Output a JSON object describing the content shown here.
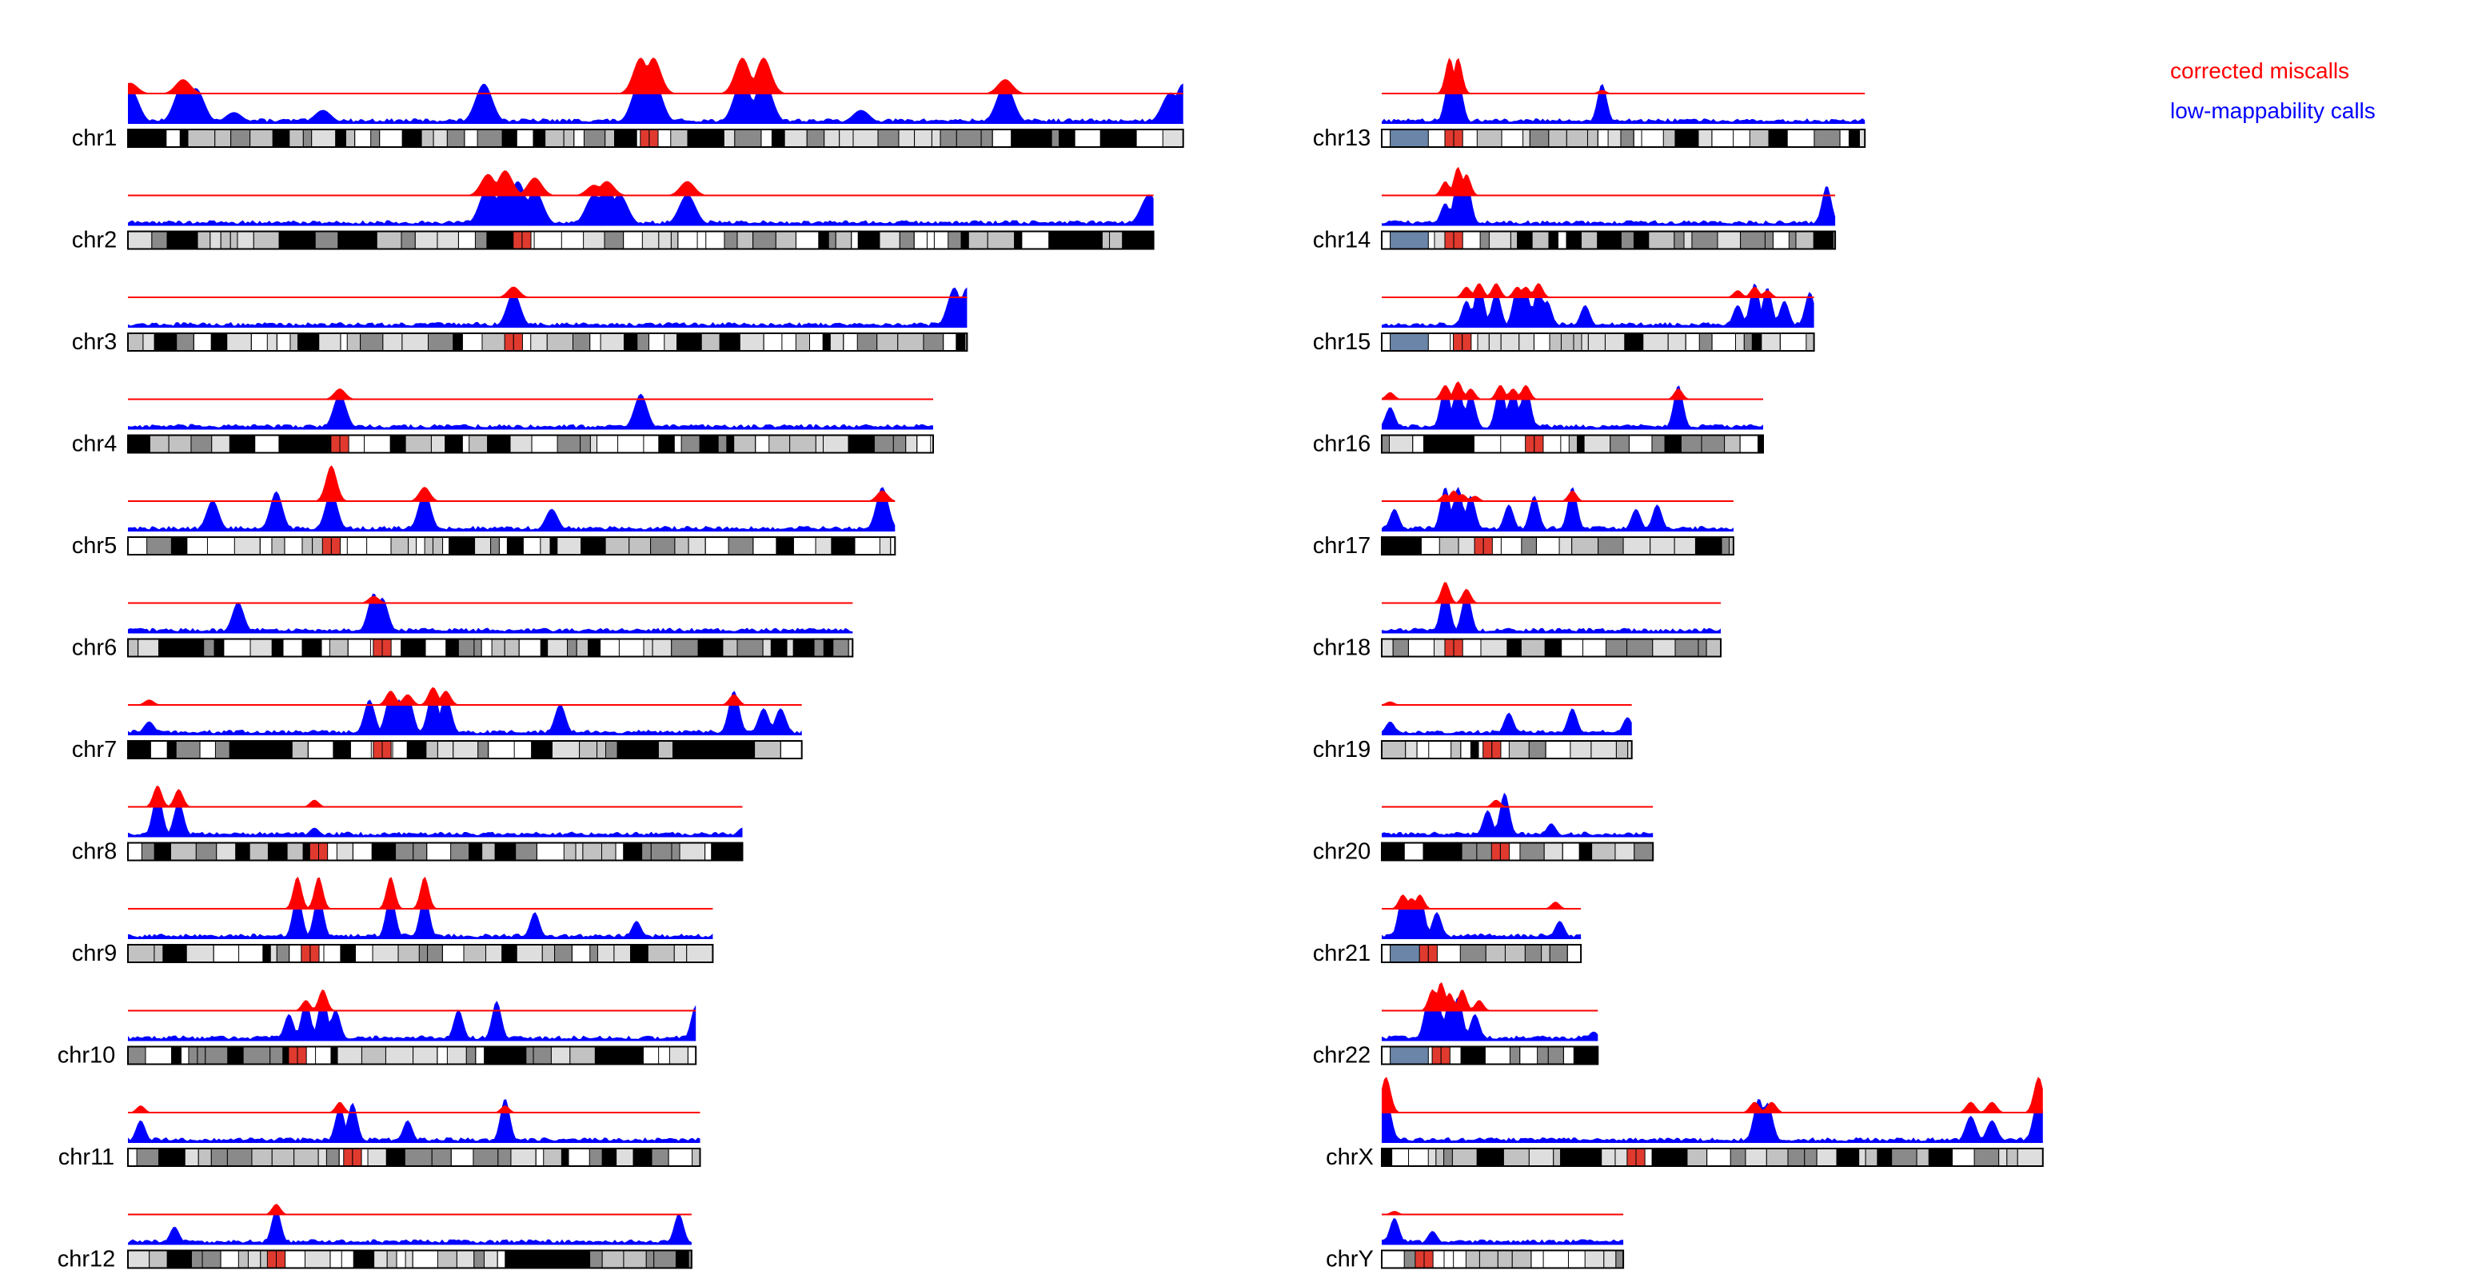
{
  "chart_data": {
    "type": "area",
    "title": "",
    "xlabel": "",
    "ylabel": "",
    "legend": {
      "placement": "top-right",
      "entries": [
        {
          "name": "corrected miscalls",
          "color": "#ff0000"
        },
        {
          "name": "low-mappability calls",
          "color": "#0000ff"
        }
      ]
    },
    "colors": {
      "miscall": "#ff0000",
      "lowmap": "#0000ff",
      "centromere": "#e03a2f",
      "acrocentric": "#6a85a8",
      "gpos25": "#dedede",
      "gpos50": "#c2c2c2",
      "gpos75": "#8a8a8a",
      "gpos100": "#000000",
      "gneg": "#ffffff"
    },
    "chromosomes": [
      {
        "name": "chr1",
        "length_mb": 249,
        "centromere_mb": 123,
        "lowmap_peaks": [
          [
            0.5,
            0.8
          ],
          [
            13,
            0.9
          ],
          [
            16,
            0.8
          ],
          [
            25,
            0.25
          ],
          [
            46,
            0.3
          ],
          [
            84,
            0.9
          ],
          [
            121,
            1.0
          ],
          [
            124,
            1.0
          ],
          [
            145,
            1.0
          ],
          [
            150,
            1.0
          ],
          [
            173,
            0.3
          ],
          [
            207,
            0.9
          ],
          [
            246,
            0.7
          ],
          [
            249,
            0.9
          ]
        ],
        "miscall_peaks": [
          [
            0.5,
            0.3
          ],
          [
            13,
            0.4
          ],
          [
            121,
            1.0
          ],
          [
            124,
            1.0
          ],
          [
            145,
            1.0
          ],
          [
            150,
            1.0
          ],
          [
            207,
            0.4
          ]
        ]
      },
      {
        "name": "chr2",
        "length_mb": 242,
        "centromere_mb": 93,
        "lowmap_peaks": [
          [
            85,
            0.9
          ],
          [
            89,
            1.0
          ],
          [
            92,
            1.0
          ],
          [
            96,
            0.8
          ],
          [
            110,
            0.7
          ],
          [
            113,
            0.9
          ],
          [
            116,
            0.7
          ],
          [
            132,
            0.7
          ],
          [
            241,
            0.7
          ]
        ],
        "miscall_peaks": [
          [
            85,
            0.6
          ],
          [
            89,
            0.7
          ],
          [
            96,
            0.5
          ],
          [
            110,
            0.3
          ],
          [
            113,
            0.4
          ],
          [
            132,
            0.4
          ]
        ]
      },
      {
        "name": "chr3",
        "length_mb": 198,
        "centromere_mb": 91,
        "lowmap_peaks": [
          [
            91,
            0.8
          ],
          [
            195,
            0.9
          ],
          [
            198,
            0.9
          ]
        ],
        "miscall_peaks": [
          [
            91,
            0.3
          ]
        ]
      },
      {
        "name": "chr4",
        "length_mb": 190,
        "centromere_mb": 50,
        "lowmap_peaks": [
          [
            50,
            0.8
          ],
          [
            121,
            0.8
          ]
        ],
        "miscall_peaks": [
          [
            50,
            0.3
          ]
        ]
      },
      {
        "name": "chr5",
        "length_mb": 181,
        "centromere_mb": 48,
        "lowmap_peaks": [
          [
            20,
            0.7
          ],
          [
            35,
            0.9
          ],
          [
            48,
            0.9
          ],
          [
            70,
            0.9
          ],
          [
            100,
            0.5
          ],
          [
            178,
            1.0
          ]
        ],
        "miscall_peaks": [
          [
            48,
            1.0
          ],
          [
            70,
            0.4
          ],
          [
            178,
            0.3
          ]
        ]
      },
      {
        "name": "chr6",
        "length_mb": 171,
        "centromere_mb": 60,
        "lowmap_peaks": [
          [
            26,
            0.7
          ],
          [
            58,
            0.9
          ],
          [
            60,
            0.8
          ]
        ],
        "miscall_peaks": [
          [
            58,
            0.2
          ]
        ]
      },
      {
        "name": "chr7",
        "length_mb": 159,
        "centromere_mb": 60,
        "lowmap_peaks": [
          [
            5,
            0.3
          ],
          [
            57,
            0.8
          ],
          [
            62,
            0.9
          ],
          [
            64,
            0.8
          ],
          [
            66,
            0.9
          ],
          [
            72,
            1.0
          ],
          [
            75,
            0.9
          ],
          [
            102,
            0.7
          ],
          [
            143,
            1.0
          ],
          [
            150,
            0.6
          ],
          [
            154,
            0.6
          ]
        ],
        "miscall_peaks": [
          [
            5,
            0.15
          ],
          [
            62,
            0.4
          ],
          [
            66,
            0.3
          ],
          [
            72,
            0.5
          ],
          [
            75,
            0.4
          ],
          [
            143,
            0.3
          ]
        ]
      },
      {
        "name": "chr8",
        "length_mb": 145,
        "centromere_mb": 45,
        "lowmap_peaks": [
          [
            7,
            1.0
          ],
          [
            12,
            0.8
          ],
          [
            44,
            0.2
          ],
          [
            145,
            0.2
          ]
        ],
        "miscall_peaks": [
          [
            7,
            0.6
          ],
          [
            12,
            0.5
          ],
          [
            44,
            0.2
          ]
        ]
      },
      {
        "name": "chr9",
        "length_mb": 138,
        "centromere_mb": 43,
        "lowmap_peaks": [
          [
            40,
            1.0
          ],
          [
            45,
            1.0
          ],
          [
            62,
            1.0
          ],
          [
            70,
            1.0
          ],
          [
            96,
            0.6
          ],
          [
            120,
            0.4
          ]
        ],
        "miscall_peaks": [
          [
            40,
            0.9
          ],
          [
            45,
            0.9
          ],
          [
            62,
            0.9
          ],
          [
            70,
            0.9
          ]
        ]
      },
      {
        "name": "chr10",
        "length_mb": 134,
        "centromere_mb": 40,
        "lowmap_peaks": [
          [
            38,
            0.6
          ],
          [
            42,
            0.9
          ],
          [
            46,
            1.0
          ],
          [
            49,
            0.7
          ],
          [
            78,
            0.7
          ],
          [
            87,
            0.9
          ],
          [
            134,
            0.8
          ]
        ],
        "miscall_peaks": [
          [
            42,
            0.3
          ],
          [
            46,
            0.6
          ]
        ]
      },
      {
        "name": "chr11",
        "length_mb": 135,
        "centromere_mb": 53,
        "lowmap_peaks": [
          [
            3,
            0.5
          ],
          [
            50,
            0.8
          ],
          [
            53,
            0.9
          ],
          [
            66,
            0.5
          ],
          [
            89,
            1.0
          ]
        ],
        "miscall_peaks": [
          [
            3,
            0.2
          ],
          [
            50,
            0.3
          ],
          [
            89,
            0.2
          ]
        ]
      },
      {
        "name": "chr12",
        "length_mb": 133,
        "centromere_mb": 35,
        "lowmap_peaks": [
          [
            11,
            0.4
          ],
          [
            35,
            0.8
          ],
          [
            130,
            0.7
          ]
        ],
        "miscall_peaks": [
          [
            35,
            0.3
          ]
        ]
      },
      {
        "name": "chr13",
        "length_mb": 114,
        "centromere_mb": 17,
        "lowmap_peaks": [
          [
            16,
            1.0
          ],
          [
            18,
            1.0
          ],
          [
            52,
            0.9
          ]
        ],
        "miscall_peaks": [
          [
            16,
            1.0
          ],
          [
            18,
            1.0
          ],
          [
            52,
            0.1
          ]
        ]
      },
      {
        "name": "chr14",
        "length_mb": 107,
        "centromere_mb": 17,
        "lowmap_peaks": [
          [
            15,
            0.5
          ],
          [
            18,
            1.0
          ],
          [
            20,
            1.0
          ],
          [
            105,
            0.9
          ]
        ],
        "miscall_peaks": [
          [
            15,
            0.4
          ],
          [
            18,
            0.8
          ],
          [
            20,
            0.6
          ]
        ]
      },
      {
        "name": "chr15",
        "length_mb": 102,
        "centromere_mb": 19,
        "lowmap_peaks": [
          [
            20,
            0.6
          ],
          [
            23,
            1.0
          ],
          [
            27,
            0.8
          ],
          [
            32,
            0.9
          ],
          [
            34,
            0.8
          ],
          [
            37,
            0.9
          ],
          [
            39,
            0.6
          ],
          [
            48,
            0.5
          ],
          [
            84,
            0.5
          ],
          [
            88,
            1.0
          ],
          [
            91,
            0.9
          ],
          [
            95,
            0.6
          ],
          [
            101,
            0.8
          ]
        ],
        "miscall_peaks": [
          [
            20,
            0.3
          ],
          [
            23,
            0.4
          ],
          [
            27,
            0.4
          ],
          [
            32,
            0.3
          ],
          [
            34,
            0.3
          ],
          [
            37,
            0.4
          ],
          [
            84,
            0.2
          ],
          [
            88,
            0.3
          ],
          [
            91,
            0.2
          ]
        ]
      },
      {
        "name": "chr16",
        "length_mb": 90,
        "centromere_mb": 36,
        "lowmap_peaks": [
          [
            2,
            0.5
          ],
          [
            15,
            1.0
          ],
          [
            18,
            1.0
          ],
          [
            21,
            0.8
          ],
          [
            28,
            1.0
          ],
          [
            31,
            0.9
          ],
          [
            34,
            1.0
          ],
          [
            70,
            1.0
          ]
        ],
        "miscall_peaks": [
          [
            2,
            0.2
          ],
          [
            15,
            0.4
          ],
          [
            18,
            0.5
          ],
          [
            21,
            0.3
          ],
          [
            28,
            0.4
          ],
          [
            31,
            0.3
          ],
          [
            34,
            0.4
          ],
          [
            70,
            0.3
          ]
        ]
      },
      {
        "name": "chr17",
        "length_mb": 83,
        "centromere_mb": 24,
        "lowmap_peaks": [
          [
            3,
            0.5
          ],
          [
            15,
            1.0
          ],
          [
            18,
            1.0
          ],
          [
            21,
            0.8
          ],
          [
            30,
            0.6
          ],
          [
            36,
            0.8
          ],
          [
            45,
            1.0
          ],
          [
            60,
            0.5
          ],
          [
            65,
            0.6
          ]
        ],
        "miscall_peaks": [
          [
            15,
            0.2
          ],
          [
            17,
            0.3
          ],
          [
            19,
            0.2
          ],
          [
            22,
            0.15
          ],
          [
            45,
            0.3
          ]
        ]
      },
      {
        "name": "chr18",
        "length_mb": 80,
        "centromere_mb": 17,
        "lowmap_peaks": [
          [
            15,
            1.0
          ],
          [
            20,
            0.9
          ]
        ],
        "miscall_peaks": [
          [
            15,
            0.6
          ],
          [
            20,
            0.4
          ]
        ]
      },
      {
        "name": "chr19",
        "length_mb": 59,
        "centromere_mb": 26,
        "lowmap_peaks": [
          [
            2,
            0.3
          ],
          [
            30,
            0.5
          ],
          [
            45,
            0.6
          ],
          [
            58,
            0.4
          ]
        ],
        "miscall_peaks": [
          [
            2,
            0.1
          ]
        ]
      },
      {
        "name": "chr20",
        "length_mb": 64,
        "centromere_mb": 28,
        "lowmap_peaks": [
          [
            25,
            0.6
          ],
          [
            29,
            1.0
          ],
          [
            40,
            0.3
          ]
        ],
        "miscall_peaks": [
          [
            27,
            0.2
          ]
        ]
      },
      {
        "name": "chr21",
        "length_mb": 47,
        "centromere_mb": 11,
        "lowmap_peaks": [
          [
            5,
            1.0
          ],
          [
            7,
            0.9
          ],
          [
            9,
            1.0
          ],
          [
            13,
            0.6
          ],
          [
            42,
            0.4
          ]
        ],
        "miscall_peaks": [
          [
            5,
            0.4
          ],
          [
            7,
            0.3
          ],
          [
            9,
            0.4
          ],
          [
            41,
            0.2
          ]
        ]
      },
      {
        "name": "chr22",
        "length_mb": 51,
        "centromere_mb": 14,
        "lowmap_peaks": [
          [
            11,
            0.9
          ],
          [
            13,
            1.0
          ],
          [
            16,
            0.9
          ],
          [
            18,
            1.0
          ],
          [
            22,
            0.6
          ],
          [
            50,
            0.2
          ]
        ],
        "miscall_peaks": [
          [
            12,
            0.6
          ],
          [
            14,
            0.8
          ],
          [
            16,
            0.5
          ],
          [
            19,
            0.6
          ],
          [
            23,
            0.3
          ]
        ]
      },
      {
        "name": "chrX",
        "length_mb": 156,
        "centromere_mb": 60,
        "lowmap_peaks": [
          [
            1,
            1.0
          ],
          [
            89,
            1.0
          ],
          [
            91,
            0.9
          ],
          [
            139,
            0.6
          ],
          [
            144,
            0.5
          ],
          [
            155,
            1.0
          ]
        ],
        "miscall_peaks": [
          [
            1,
            1.0
          ],
          [
            88,
            0.3
          ],
          [
            92,
            0.3
          ],
          [
            139,
            0.3
          ],
          [
            144,
            0.3
          ],
          [
            155,
            1.0
          ]
        ]
      },
      {
        "name": "chrY",
        "length_mb": 57,
        "centromere_mb": 10,
        "lowmap_peaks": [
          [
            3,
            0.6
          ],
          [
            12,
            0.3
          ]
        ],
        "miscall_peaks": [
          [
            3,
            0.1
          ]
        ]
      }
    ]
  }
}
